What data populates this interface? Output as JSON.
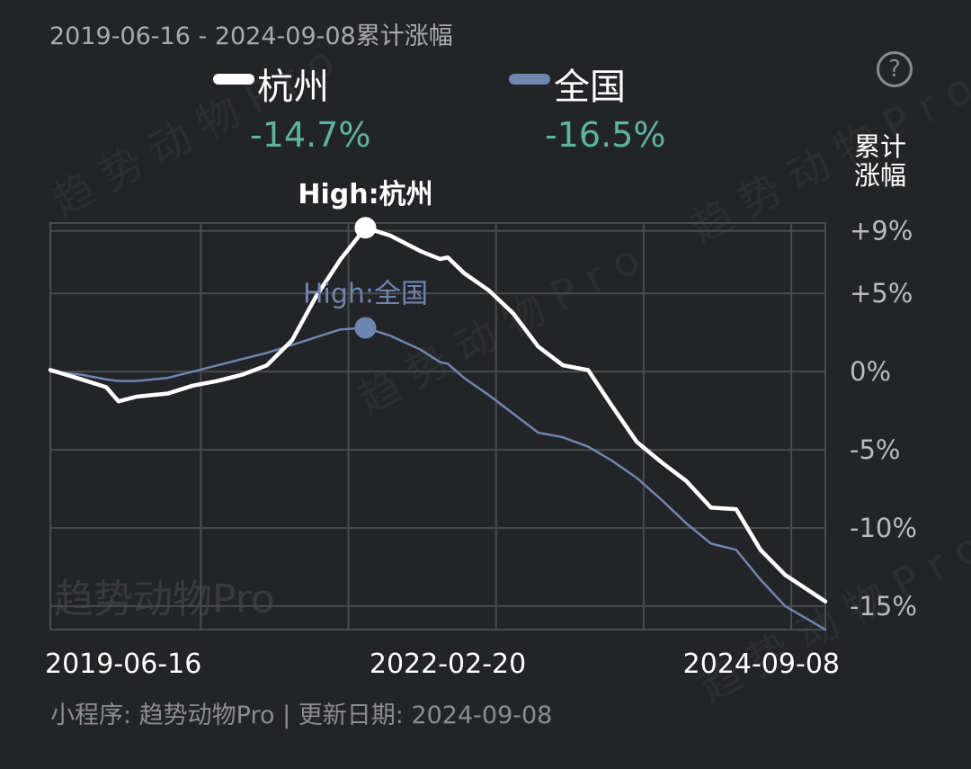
{
  "header": {
    "range": "2019-06-16 - 2024-09-08累计涨幅",
    "help_icon": "question-circle-icon",
    "legend": [
      {
        "name": "杭州",
        "change": "-14.7%",
        "color": "#ffffff"
      },
      {
        "name": "全国",
        "change": "-16.5%",
        "color": "#6f86b0"
      }
    ],
    "unit_label": "累计涨幅"
  },
  "chart_data": {
    "type": "line",
    "x_tick_labels": [
      "2019-06-16",
      "2022-02-20",
      "2024-09-08"
    ],
    "y_tick_labels": [
      "+9%",
      "+5%",
      "0%",
      "-5%",
      "-10%",
      "-15%"
    ],
    "ylim": [
      -16.5,
      9.5
    ],
    "grid": true,
    "series": [
      {
        "name": "杭州",
        "color": "#ffffff",
        "high_label": "High:杭州",
        "x": [
          "2019-06-16",
          "2019-09-01",
          "2019-11-01",
          "2019-12-01",
          "2020-01-15",
          "2020-04-01",
          "2020-06-01",
          "2020-08-01",
          "2020-10-01",
          "2020-12-01",
          "2021-02-01",
          "2021-04-01",
          "2021-06-01",
          "2021-08-01",
          "2021-10-01",
          "2021-12-15",
          "2022-02-01",
          "2022-02-20",
          "2022-04-01",
          "2022-06-01",
          "2022-08-01",
          "2022-10-01",
          "2022-12-01",
          "2023-02-01",
          "2023-04-01",
          "2023-06-01",
          "2023-08-01",
          "2023-10-01",
          "2023-12-01",
          "2024-02-01",
          "2024-04-01",
          "2024-06-01",
          "2024-09-08"
        ],
        "values": [
          0.1,
          -0.5,
          -1.0,
          -1.9,
          -1.6,
          -1.4,
          -0.9,
          -0.6,
          -0.2,
          0.4,
          2.0,
          4.8,
          7.2,
          9.2,
          8.7,
          7.7,
          7.2,
          7.3,
          6.3,
          5.2,
          3.7,
          1.6,
          0.4,
          0.1,
          -2.2,
          -4.5,
          -5.8,
          -7.0,
          -8.7,
          -8.8,
          -11.4,
          -13.0,
          -14.7
        ]
      },
      {
        "name": "全国",
        "color": "#6f86b0",
        "high_label": "High:全国",
        "x": [
          "2019-06-16",
          "2019-09-01",
          "2019-11-01",
          "2019-12-01",
          "2020-01-15",
          "2020-04-01",
          "2020-06-01",
          "2020-08-01",
          "2020-10-01",
          "2020-12-01",
          "2021-02-01",
          "2021-04-01",
          "2021-06-01",
          "2021-08-01",
          "2021-10-01",
          "2021-12-15",
          "2022-02-01",
          "2022-02-20",
          "2022-04-01",
          "2022-06-01",
          "2022-08-01",
          "2022-10-01",
          "2022-12-01",
          "2023-02-01",
          "2023-04-01",
          "2023-06-01",
          "2023-08-01",
          "2023-10-01",
          "2023-12-01",
          "2024-02-01",
          "2024-04-01",
          "2024-06-01",
          "2024-09-08"
        ],
        "values": [
          0.0,
          -0.2,
          -0.5,
          -0.6,
          -0.6,
          -0.4,
          0.0,
          0.4,
          0.8,
          1.2,
          1.7,
          2.2,
          2.7,
          2.8,
          2.3,
          1.4,
          0.6,
          0.5,
          -0.4,
          -1.5,
          -2.7,
          -3.9,
          -4.2,
          -4.8,
          -5.7,
          -6.8,
          -8.2,
          -9.7,
          -11.0,
          -11.4,
          -13.3,
          -15.0,
          -16.5
        ]
      }
    ]
  },
  "watermark": "趋势动物Pro",
  "footer": "小程序: 趋势动物Pro | 更新日期: 2024-09-08"
}
